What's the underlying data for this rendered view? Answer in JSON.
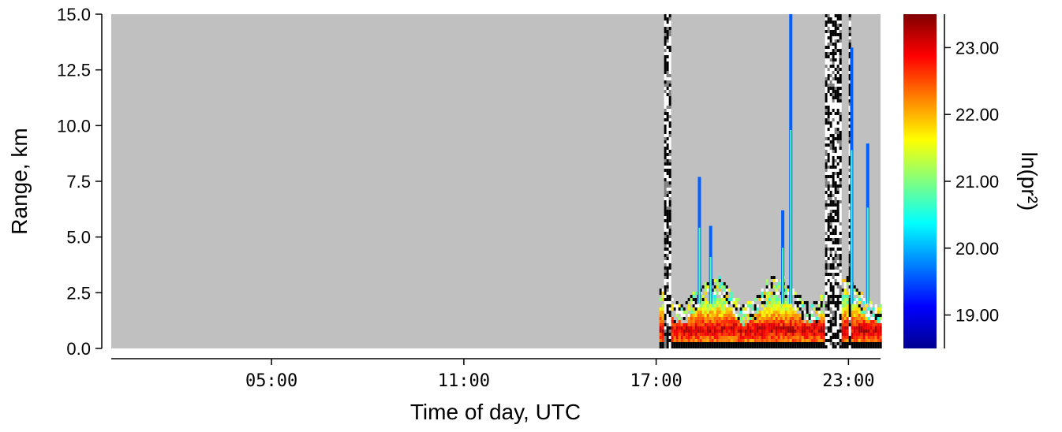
{
  "chart_data": {
    "type": "heatmap",
    "title": "",
    "xlabel": "Time of day, UTC",
    "ylabel": "Range, km",
    "colorbar_label": "ln(pr²)",
    "x_range_hours": [
      0,
      24
    ],
    "ylim": [
      0,
      15
    ],
    "x_ticks": [
      {
        "hour": 5,
        "label": "05:00"
      },
      {
        "hour": 11,
        "label": "11:00"
      },
      {
        "hour": 17,
        "label": "17:00"
      },
      {
        "hour": 23,
        "label": "23:00"
      }
    ],
    "y_ticks": [
      {
        "value": 0,
        "label": "0.0"
      },
      {
        "value": 2.5,
        "label": "2.5"
      },
      {
        "value": 5,
        "label": "5.0"
      },
      {
        "value": 7.5,
        "label": "7.5"
      },
      {
        "value": 10,
        "label": "10.0"
      },
      {
        "value": 12.5,
        "label": "12.5"
      },
      {
        "value": 15,
        "label": "15.0"
      }
    ],
    "colorbar_range": [
      18.5,
      23.5
    ],
    "colorbar_ticks": [
      {
        "value": 19,
        "label": "19.00"
      },
      {
        "value": 20,
        "label": "20.00"
      },
      {
        "value": 21,
        "label": "21.00"
      },
      {
        "value": 22,
        "label": "22.00"
      },
      {
        "value": 23,
        "label": "23.00"
      }
    ],
    "colormap": [
      "#00008f",
      "#0000ff",
      "#0080ff",
      "#00ffff",
      "#80ff80",
      "#ffff00",
      "#ff8000",
      "#ff0000",
      "#800000"
    ],
    "no_data_color": "#c0c0c0",
    "data_start_hour": 17.1,
    "noise_columns_hours": [
      [
        17.2,
        17.45
      ],
      [
        21.55,
        21.6
      ],
      [
        22.2,
        22.75
      ],
      [
        23.0,
        23.05
      ]
    ],
    "spikes": [
      {
        "hour": 18.35,
        "top_km": 7.7
      },
      {
        "hour": 18.7,
        "top_km": 5.5
      },
      {
        "hour": 20.95,
        "top_km": 6.2
      },
      {
        "hour": 21.2,
        "top_km": 15.0
      },
      {
        "hour": 23.1,
        "top_km": 13.5
      },
      {
        "hour": 23.6,
        "top_km": 9.2
      }
    ]
  }
}
